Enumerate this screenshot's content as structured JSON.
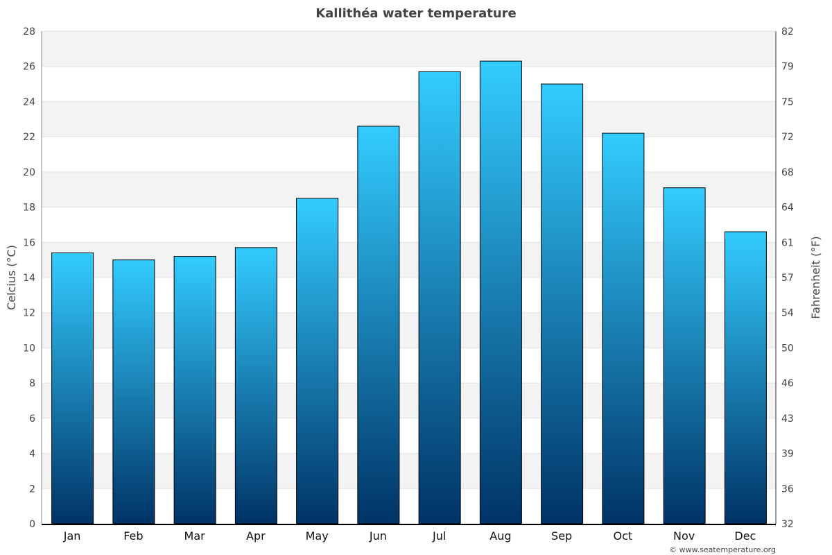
{
  "chart_data": {
    "type": "bar",
    "title": "Kallithéa water temperature",
    "xlabel": "",
    "ylabel": "Celcius (°C)",
    "ylabel_right": "Fahrenheit (°F)",
    "categories": [
      "Jan",
      "Feb",
      "Mar",
      "Apr",
      "May",
      "Jun",
      "Jul",
      "Aug",
      "Sep",
      "Oct",
      "Nov",
      "Dec"
    ],
    "values": [
      15.4,
      15.0,
      15.2,
      15.7,
      18.5,
      22.6,
      25.7,
      26.3,
      25.0,
      22.2,
      19.1,
      16.6
    ],
    "ylim": [
      0,
      28
    ],
    "yticks": [
      "0",
      "2",
      "4",
      "6",
      "8",
      "10",
      "12",
      "14",
      "16",
      "18",
      "20",
      "22",
      "24",
      "26",
      "28"
    ],
    "yticks_right": [
      "32",
      "36",
      "39",
      "43",
      "46",
      "50",
      "54",
      "57",
      "61",
      "64",
      "68",
      "72",
      "75",
      "79",
      "82"
    ],
    "grid": true,
    "bar_color_top": "#33ccff",
    "bar_color_bottom": "#003366",
    "band_color": "#f3f3f3"
  },
  "credit": "© www.seatemperature.org"
}
